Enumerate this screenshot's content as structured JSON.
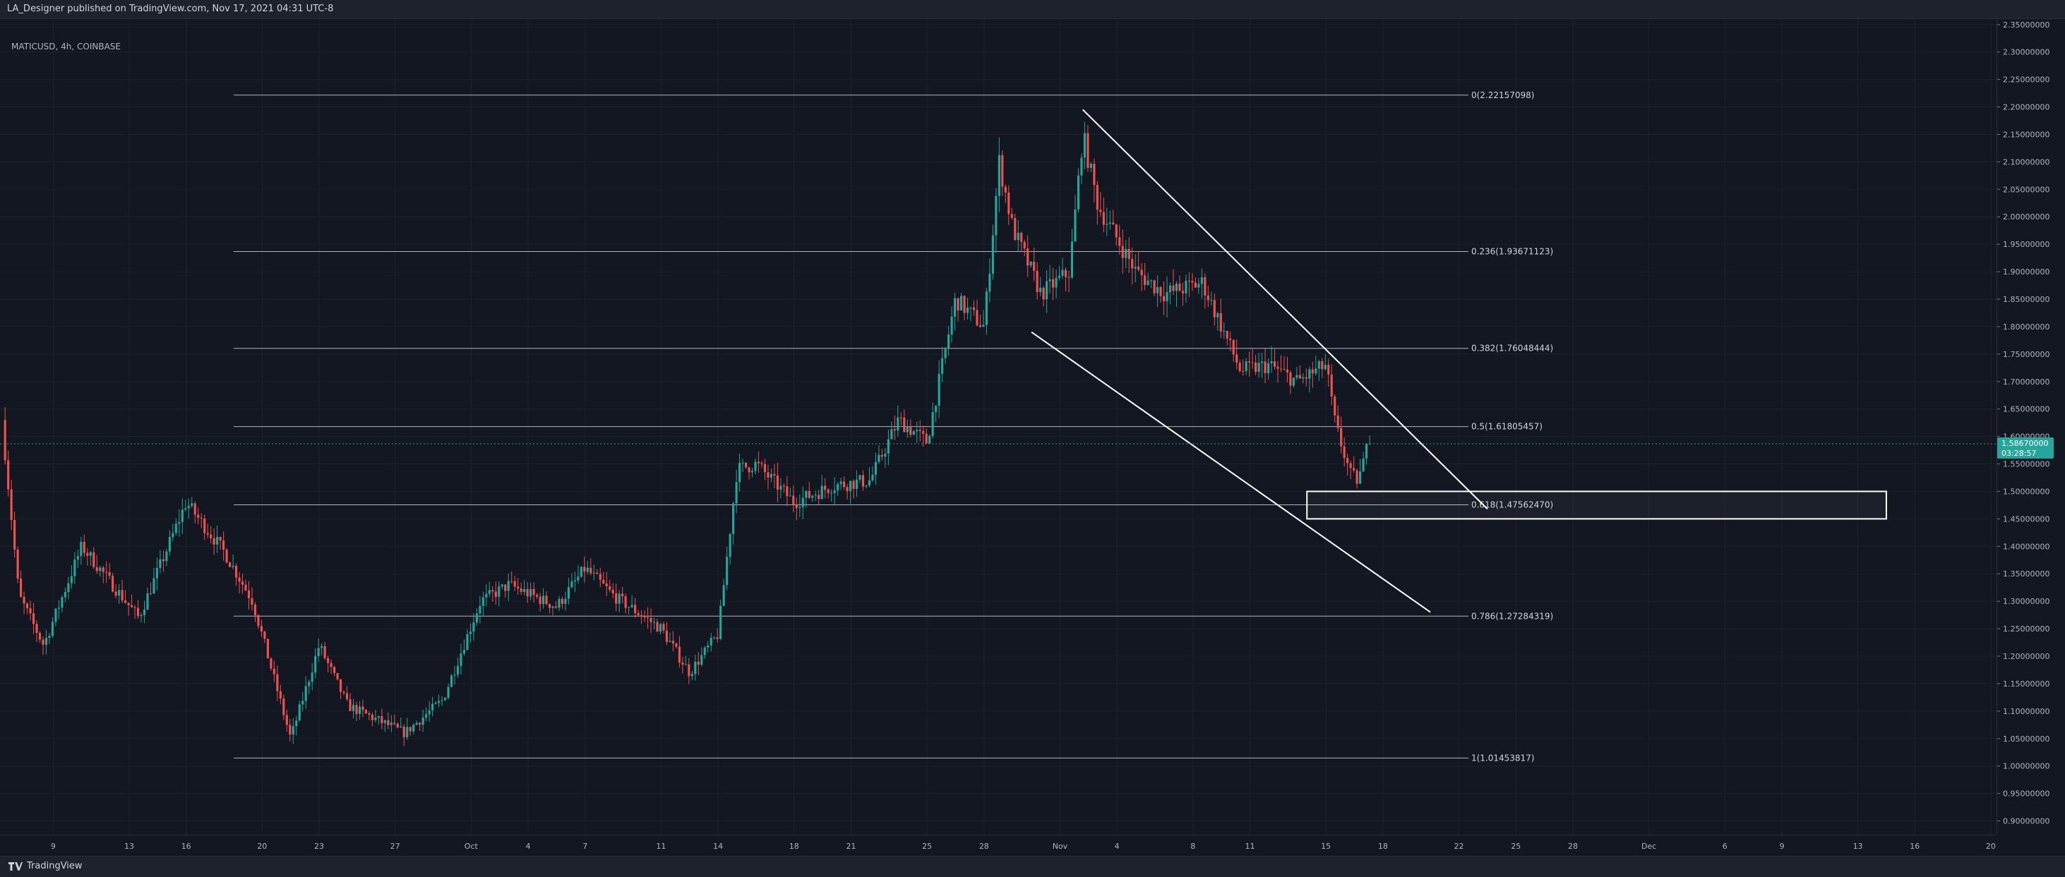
{
  "header": {
    "publish_text": "LA_Designer published on TradingView.com, Nov 17, 2021 04:31 UTC-8"
  },
  "symbol_label": "MATICUSD, 4h, COINBASE",
  "footer": {
    "brand": "TradingView"
  },
  "price_tag": {
    "value": "1.58670000",
    "countdown": "03:28:57",
    "color": "#26a69a"
  },
  "colors": {
    "up": "#26a69a",
    "down": "#ef5350",
    "line": "#d1d4dc",
    "grid": "#1e222d"
  },
  "chart_data": {
    "type": "candlestick",
    "symbol": "MATICUSD",
    "interval": "4h",
    "exchange": "COINBASE",
    "ylim": [
      0.875,
      2.36
    ],
    "y_ticks": [
      "2.35000000",
      "2.30000000",
      "2.25000000",
      "2.20000000",
      "2.15000000",
      "2.10000000",
      "2.05000000",
      "2.00000000",
      "1.95000000",
      "1.90000000",
      "1.85000000",
      "1.80000000",
      "1.75000000",
      "1.70000000",
      "1.65000000",
      "1.60000000",
      "1.55000000",
      "1.50000000",
      "1.45000000",
      "1.40000000",
      "1.35000000",
      "1.30000000",
      "1.25000000",
      "1.20000000",
      "1.15000000",
      "1.10000000",
      "1.05000000",
      "1.00000000",
      "0.95000000",
      "0.90000000"
    ],
    "x_ticks": [
      "9",
      "13",
      "16",
      "20",
      "23",
      "27",
      "Oct",
      "4",
      "7",
      "11",
      "14",
      "18",
      "21",
      "25",
      "28",
      "Nov",
      "4",
      "8",
      "11",
      "15",
      "18",
      "22",
      "25",
      "28",
      "Dec",
      "6",
      "9",
      "13",
      "16",
      "20"
    ],
    "x_tick_days": [
      9,
      13,
      16,
      20,
      23,
      27,
      31,
      34,
      37,
      41,
      44,
      48,
      51,
      55,
      58,
      62,
      65,
      69,
      72,
      76,
      79,
      83,
      86,
      89,
      93,
      97,
      100,
      104,
      107,
      111
    ],
    "x_range_days": [
      6.2,
      111.3
    ],
    "x_day_zero": "Sep 1, 2021",
    "fib_levels": [
      {
        "ratio": "0",
        "price": 2.22157098,
        "label": "0(2.22157098)"
      },
      {
        "ratio": "0.236",
        "price": 1.93671123,
        "label": "0.236(1.93671123)"
      },
      {
        "ratio": "0.382",
        "price": 1.76048444,
        "label": "0.382(1.76048444)"
      },
      {
        "ratio": "0.5",
        "price": 1.61805457,
        "label": "0.5(1.61805457)"
      },
      {
        "ratio": "0.618",
        "price": 1.4756247,
        "label": "0.618(1.47562470)"
      },
      {
        "ratio": "0.786",
        "price": 1.27284319,
        "label": "0.786(1.27284319)"
      },
      {
        "ratio": "1",
        "price": 1.01453817,
        "label": "1(1.01453817)"
      }
    ],
    "fib_start_day": 18.5,
    "fib_end_day": 83.5,
    "trendlines": [
      {
        "from": [
          63.2,
          2.195
        ],
        "to": [
          84.5,
          1.468
        ]
      },
      {
        "from": [
          60.5,
          1.79
        ],
        "to": [
          81.5,
          1.28
        ]
      }
    ],
    "zone": {
      "day_start": 75.0,
      "day_end": 105.5,
      "price_low": 1.45,
      "price_high": 1.5
    },
    "last_price": 1.5867,
    "key_points": [
      {
        "day": 6.3,
        "price": 1.63
      },
      {
        "day": 7.2,
        "price": 1.31
      },
      {
        "day": 8.5,
        "price": 1.22
      },
      {
        "day": 10.5,
        "price": 1.4
      },
      {
        "day": 13.5,
        "price": 1.27
      },
      {
        "day": 16.0,
        "price": 1.48
      },
      {
        "day": 18.0,
        "price": 1.39
      },
      {
        "day": 19.5,
        "price": 1.3
      },
      {
        "day": 21.5,
        "price": 1.05
      },
      {
        "day": 23.0,
        "price": 1.22
      },
      {
        "day": 24.5,
        "price": 1.11
      },
      {
        "day": 27.5,
        "price": 1.06
      },
      {
        "day": 29.5,
        "price": 1.12
      },
      {
        "day": 31.5,
        "price": 1.3
      },
      {
        "day": 33.0,
        "price": 1.33
      },
      {
        "day": 35.5,
        "price": 1.29
      },
      {
        "day": 37.0,
        "price": 1.36
      },
      {
        "day": 38.5,
        "price": 1.31
      },
      {
        "day": 41.0,
        "price": 1.25
      },
      {
        "day": 42.5,
        "price": 1.17
      },
      {
        "day": 44.0,
        "price": 1.24
      },
      {
        "day": 45.0,
        "price": 1.54
      },
      {
        "day": 46.0,
        "price": 1.55
      },
      {
        "day": 48.0,
        "price": 1.48
      },
      {
        "day": 50.0,
        "price": 1.51
      },
      {
        "day": 52.0,
        "price": 1.52
      },
      {
        "day": 53.5,
        "price": 1.63
      },
      {
        "day": 55.0,
        "price": 1.59
      },
      {
        "day": 56.5,
        "price": 1.85
      },
      {
        "day": 58.0,
        "price": 1.8
      },
      {
        "day": 58.8,
        "price": 2.1
      },
      {
        "day": 59.5,
        "price": 1.98
      },
      {
        "day": 61.0,
        "price": 1.86
      },
      {
        "day": 62.5,
        "price": 1.9
      },
      {
        "day": 63.2,
        "price": 2.15
      },
      {
        "day": 64.0,
        "price": 2.02
      },
      {
        "day": 66.0,
        "price": 1.9
      },
      {
        "day": 67.5,
        "price": 1.86
      },
      {
        "day": 69.5,
        "price": 1.88
      },
      {
        "day": 70.5,
        "price": 1.8
      },
      {
        "day": 71.5,
        "price": 1.72
      },
      {
        "day": 73.0,
        "price": 1.73
      },
      {
        "day": 74.5,
        "price": 1.7
      },
      {
        "day": 76.0,
        "price": 1.73
      },
      {
        "day": 76.5,
        "price": 1.62
      },
      {
        "day": 77.3,
        "price": 1.53
      },
      {
        "day": 77.7,
        "price": 1.52
      },
      {
        "day": 78.3,
        "price": 1.5867
      }
    ]
  }
}
